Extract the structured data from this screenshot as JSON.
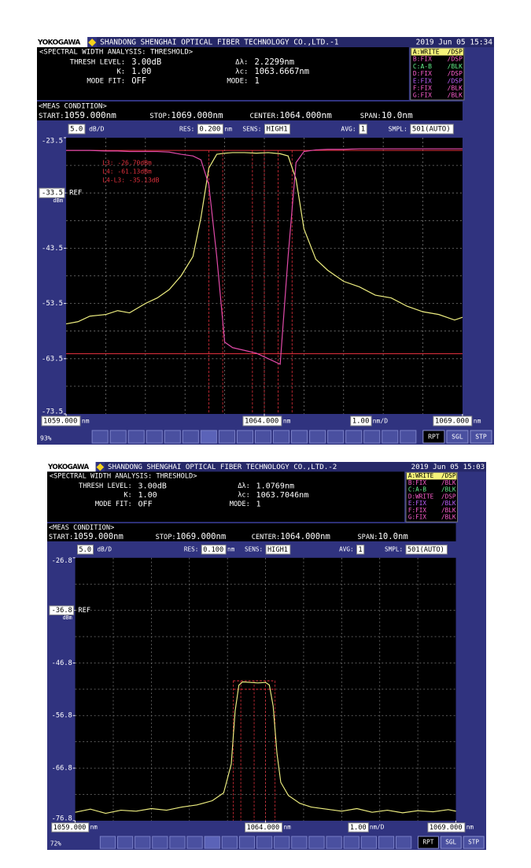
{
  "chart_data": [
    {
      "type": "line",
      "brand": "YOKOGAWA",
      "title": "SHANDONG SHENGHAI OPTICAL FIBER TECHNOLOGY CO.,LTD.-1",
      "datetime": "2019 Jun 05 15:34",
      "analysis_title": "<SPECTRAL WIDTH ANALYSIS: THRESHOLD>",
      "params": [
        {
          "label": "THRESH LEVEL:",
          "value": "3.00dB"
        },
        {
          "label": "K:",
          "value": "1.00"
        },
        {
          "label": "MODE FIT:",
          "value": "OFF"
        },
        {
          "label": "Δλ:",
          "value": "2.2299nm"
        },
        {
          "label": "λc:",
          "value": "1063.6667nm"
        },
        {
          "label": "MODE:",
          "value": "1"
        }
      ],
      "trace_status": [
        [
          "A:WRITE",
          "/DSP"
        ],
        [
          "B:FIX",
          "/DSP"
        ],
        [
          "C:A-B",
          "/BLK"
        ],
        [
          "D:FIX",
          "/DSP"
        ],
        [
          "E:FIX",
          "/DSP"
        ],
        [
          "F:FIX",
          "/BLK"
        ],
        [
          "G:FIX",
          "/BLK"
        ]
      ],
      "trace_colors": [
        "#f4f27a",
        "#ff5fd0",
        "#62f08a",
        "#ff5fd0",
        "#c060ff",
        "#ff5fd0",
        "#ff5fd0"
      ],
      "meas_title": "<MEAS CONDITION>",
      "meas": [
        {
          "label": "START:",
          "value": "1059.000nm"
        },
        {
          "label": "STOP:",
          "value": "1069.000nm"
        },
        {
          "label": "CENTER:",
          "value": "1064.000nm"
        },
        {
          "label": "SPAN:",
          "value": "10.0nm"
        }
      ],
      "scale": {
        "value": 5,
        "label": "5.0"
      },
      "scale_unit": "dB/D",
      "settings": [
        {
          "label": "RES:",
          "value": "0.200",
          "unit": "nm"
        },
        {
          "label": "SENS:",
          "value": "HIGH1"
        },
        {
          "label": "AVG:",
          "value": "1"
        },
        {
          "label": "SMPL:",
          "value": "501(AUTO)"
        }
      ],
      "ylim": [
        -73.5,
        -23.5
      ],
      "yticks": [
        -23.5,
        -33.5,
        -43.5,
        -53.5,
        -63.5,
        -73.5
      ],
      "ref_level": -33.5,
      "ref_label": "REF",
      "y_unit": "dBm",
      "xlim": [
        1059,
        1069
      ],
      "xticks": [
        {
          "value": 1059,
          "label": "1059.000"
        },
        {
          "value": 1064,
          "label": "1064.000"
        },
        {
          "value": 1069,
          "label": "1069.000"
        }
      ],
      "x_unit": "nm",
      "x_per_div": {
        "value": 1,
        "label": "1.00"
      },
      "x_per_div_unit": "nm/D",
      "grid": true,
      "x": [
        1059,
        1059.3,
        1059.6,
        1060,
        1060.3,
        1060.6,
        1061,
        1061.3,
        1061.6,
        1061.9,
        1062.2,
        1062.4,
        1062.6,
        1062.8,
        1063,
        1063.2,
        1063.5,
        1063.8,
        1064.1,
        1064.4,
        1064.6,
        1064.8,
        1065,
        1065.3,
        1065.6,
        1066,
        1066.4,
        1066.8,
        1067.2,
        1067.6,
        1068,
        1068.4,
        1068.8,
        1069
      ],
      "series": [
        {
          "color": "#eeee80",
          "values": [
            -57.2,
            -56.8,
            -55.8,
            -55.5,
            -54.8,
            -55.2,
            -53.5,
            -52.5,
            -51.0,
            -48.5,
            -45.0,
            -38.0,
            -29.0,
            -26.5,
            -26.3,
            -26.2,
            -26.2,
            -26.3,
            -26.2,
            -26.4,
            -26.8,
            -31.0,
            -40.0,
            -45.5,
            -47.5,
            -49.5,
            -50.5,
            -52.0,
            -52.5,
            -54.0,
            -55.0,
            -55.5,
            -56.5,
            -56.0
          ]
        },
        {
          "color": "#e04aa8",
          "values": [
            -25.8,
            -25.8,
            -25.8,
            -25.9,
            -25.9,
            -26.0,
            -26.0,
            -26.0,
            -26.1,
            -26.5,
            -26.8,
            -27.5,
            -32,
            -45,
            -60.5,
            -61.5,
            -62,
            -62.5,
            -63.5,
            -64.5,
            -45,
            -28,
            -26.0,
            -25.7,
            -25.6,
            -25.6,
            -25.5,
            -25.5,
            -25.5,
            -25.5,
            -25.5,
            -25.5,
            -25.5,
            -25.5
          ]
        }
      ],
      "markers": {
        "h": [
          -25.8,
          -62.6
        ],
        "v": [
          1062.6,
          1062.95,
          1063.7,
          1064.0,
          1064.35,
          1064.7
        ],
        "style": "solid",
        "color": "#e0303c"
      },
      "marker_texts": [
        "L3: -26.70dBm",
        "L4: -61.13dBm",
        "L4-L3: -35.13dB"
      ],
      "zoom": "93%",
      "buttons": [
        "RPT",
        "SGL",
        "STP"
      ]
    },
    {
      "type": "line",
      "brand": "YOKOGAWA",
      "title": "SHANDONG SHENGHAI OPTICAL FIBER TECHNOLOGY CO.,LTD.-2",
      "datetime": "2019 Jun 05 15:03",
      "analysis_title": "<SPECTRAL WIDTH ANALYSIS: THRESHOLD>",
      "params": [
        {
          "label": "THRESH LEVEL:",
          "value": "3.00dB"
        },
        {
          "label": "K:",
          "value": "1.00"
        },
        {
          "label": "MODE FIT:",
          "value": "OFF"
        },
        {
          "label": "Δλ:",
          "value": "1.0769nm"
        },
        {
          "label": "λc:",
          "value": "1063.7046nm"
        },
        {
          "label": "MODE:",
          "value": "1"
        }
      ],
      "trace_status": [
        [
          "A:WRITE",
          "/DSP"
        ],
        [
          "B:FIX",
          "/BLK"
        ],
        [
          "C:A-B",
          "/BLK"
        ],
        [
          "D:WRITE",
          "/DSP"
        ],
        [
          "E:FIX",
          "/BLK"
        ],
        [
          "F:FIX",
          "/BLK"
        ],
        [
          "G:FIX",
          "/BLK"
        ]
      ],
      "trace_colors": [
        "#f4f27a",
        "#ff5fd0",
        "#62f08a",
        "#ff5fd0",
        "#c060ff",
        "#ff5fd0",
        "#ff5fd0"
      ],
      "meas_title": "<MEAS CONDITION>",
      "meas": [
        {
          "label": "START:",
          "value": "1059.000nm"
        },
        {
          "label": "STOP:",
          "value": "1069.000nm"
        },
        {
          "label": "CENTER:",
          "value": "1064.000nm"
        },
        {
          "label": "SPAN:",
          "value": "10.0nm"
        }
      ],
      "scale": {
        "value": 5,
        "label": "5.0"
      },
      "scale_unit": "dB/D",
      "settings": [
        {
          "label": "RES:",
          "value": "0.100",
          "unit": "nm"
        },
        {
          "label": "SENS:",
          "value": "HIGH1"
        },
        {
          "label": "AVG:",
          "value": "1"
        },
        {
          "label": "SMPL:",
          "value": "501(AUTO)"
        }
      ],
      "ylim": [
        -76.8,
        -26.8
      ],
      "yticks": [
        -26.8,
        -36.8,
        -46.8,
        -56.8,
        -66.8,
        -76.8
      ],
      "ref_level": -36.8,
      "ref_label": "REF",
      "y_unit": "dBm",
      "xlim": [
        1059,
        1069
      ],
      "xticks": [
        {
          "value": 1059,
          "label": "1059.000"
        },
        {
          "value": 1064,
          "label": "1064.000"
        },
        {
          "value": 1069,
          "label": "1069.000"
        }
      ],
      "x_unit": "nm",
      "x_per_div": {
        "value": 1,
        "label": "1.00"
      },
      "x_per_div_unit": "nm/D",
      "grid": true,
      "x": [
        1059,
        1059.4,
        1059.8,
        1060.2,
        1060.6,
        1061,
        1061.4,
        1061.8,
        1062.2,
        1062.6,
        1062.9,
        1063.1,
        1063.2,
        1063.3,
        1063.4,
        1063.6,
        1063.8,
        1064,
        1064.1,
        1064.2,
        1064.3,
        1064.4,
        1064.6,
        1064.9,
        1065.2,
        1065.6,
        1066,
        1066.4,
        1066.8,
        1067.2,
        1067.6,
        1068,
        1068.4,
        1068.8,
        1069
      ],
      "series": [
        {
          "color": "#eeee80",
          "values": [
            -75.2,
            -74.6,
            -75.4,
            -74.8,
            -75.0,
            -74.5,
            -74.8,
            -74.2,
            -73.8,
            -73.0,
            -71.5,
            -66,
            -56,
            -51,
            -50.4,
            -50.5,
            -50.6,
            -50.5,
            -51,
            -55,
            -64,
            -69.5,
            -72.0,
            -73.5,
            -74.2,
            -74.6,
            -75.0,
            -74.5,
            -75.2,
            -74.8,
            -75.3,
            -74.9,
            -75.1,
            -74.7,
            -75.0
          ]
        }
      ],
      "markers": {
        "h": [
          -50.2,
          -51.8
        ],
        "v": [
          1063.15,
          1063.35,
          1063.7,
          1064.0,
          1064.25
        ],
        "style": "dashed",
        "color": "#e0303c"
      },
      "zoom": "72%",
      "buttons": [
        "RPT",
        "SGL",
        "STP"
      ]
    }
  ]
}
